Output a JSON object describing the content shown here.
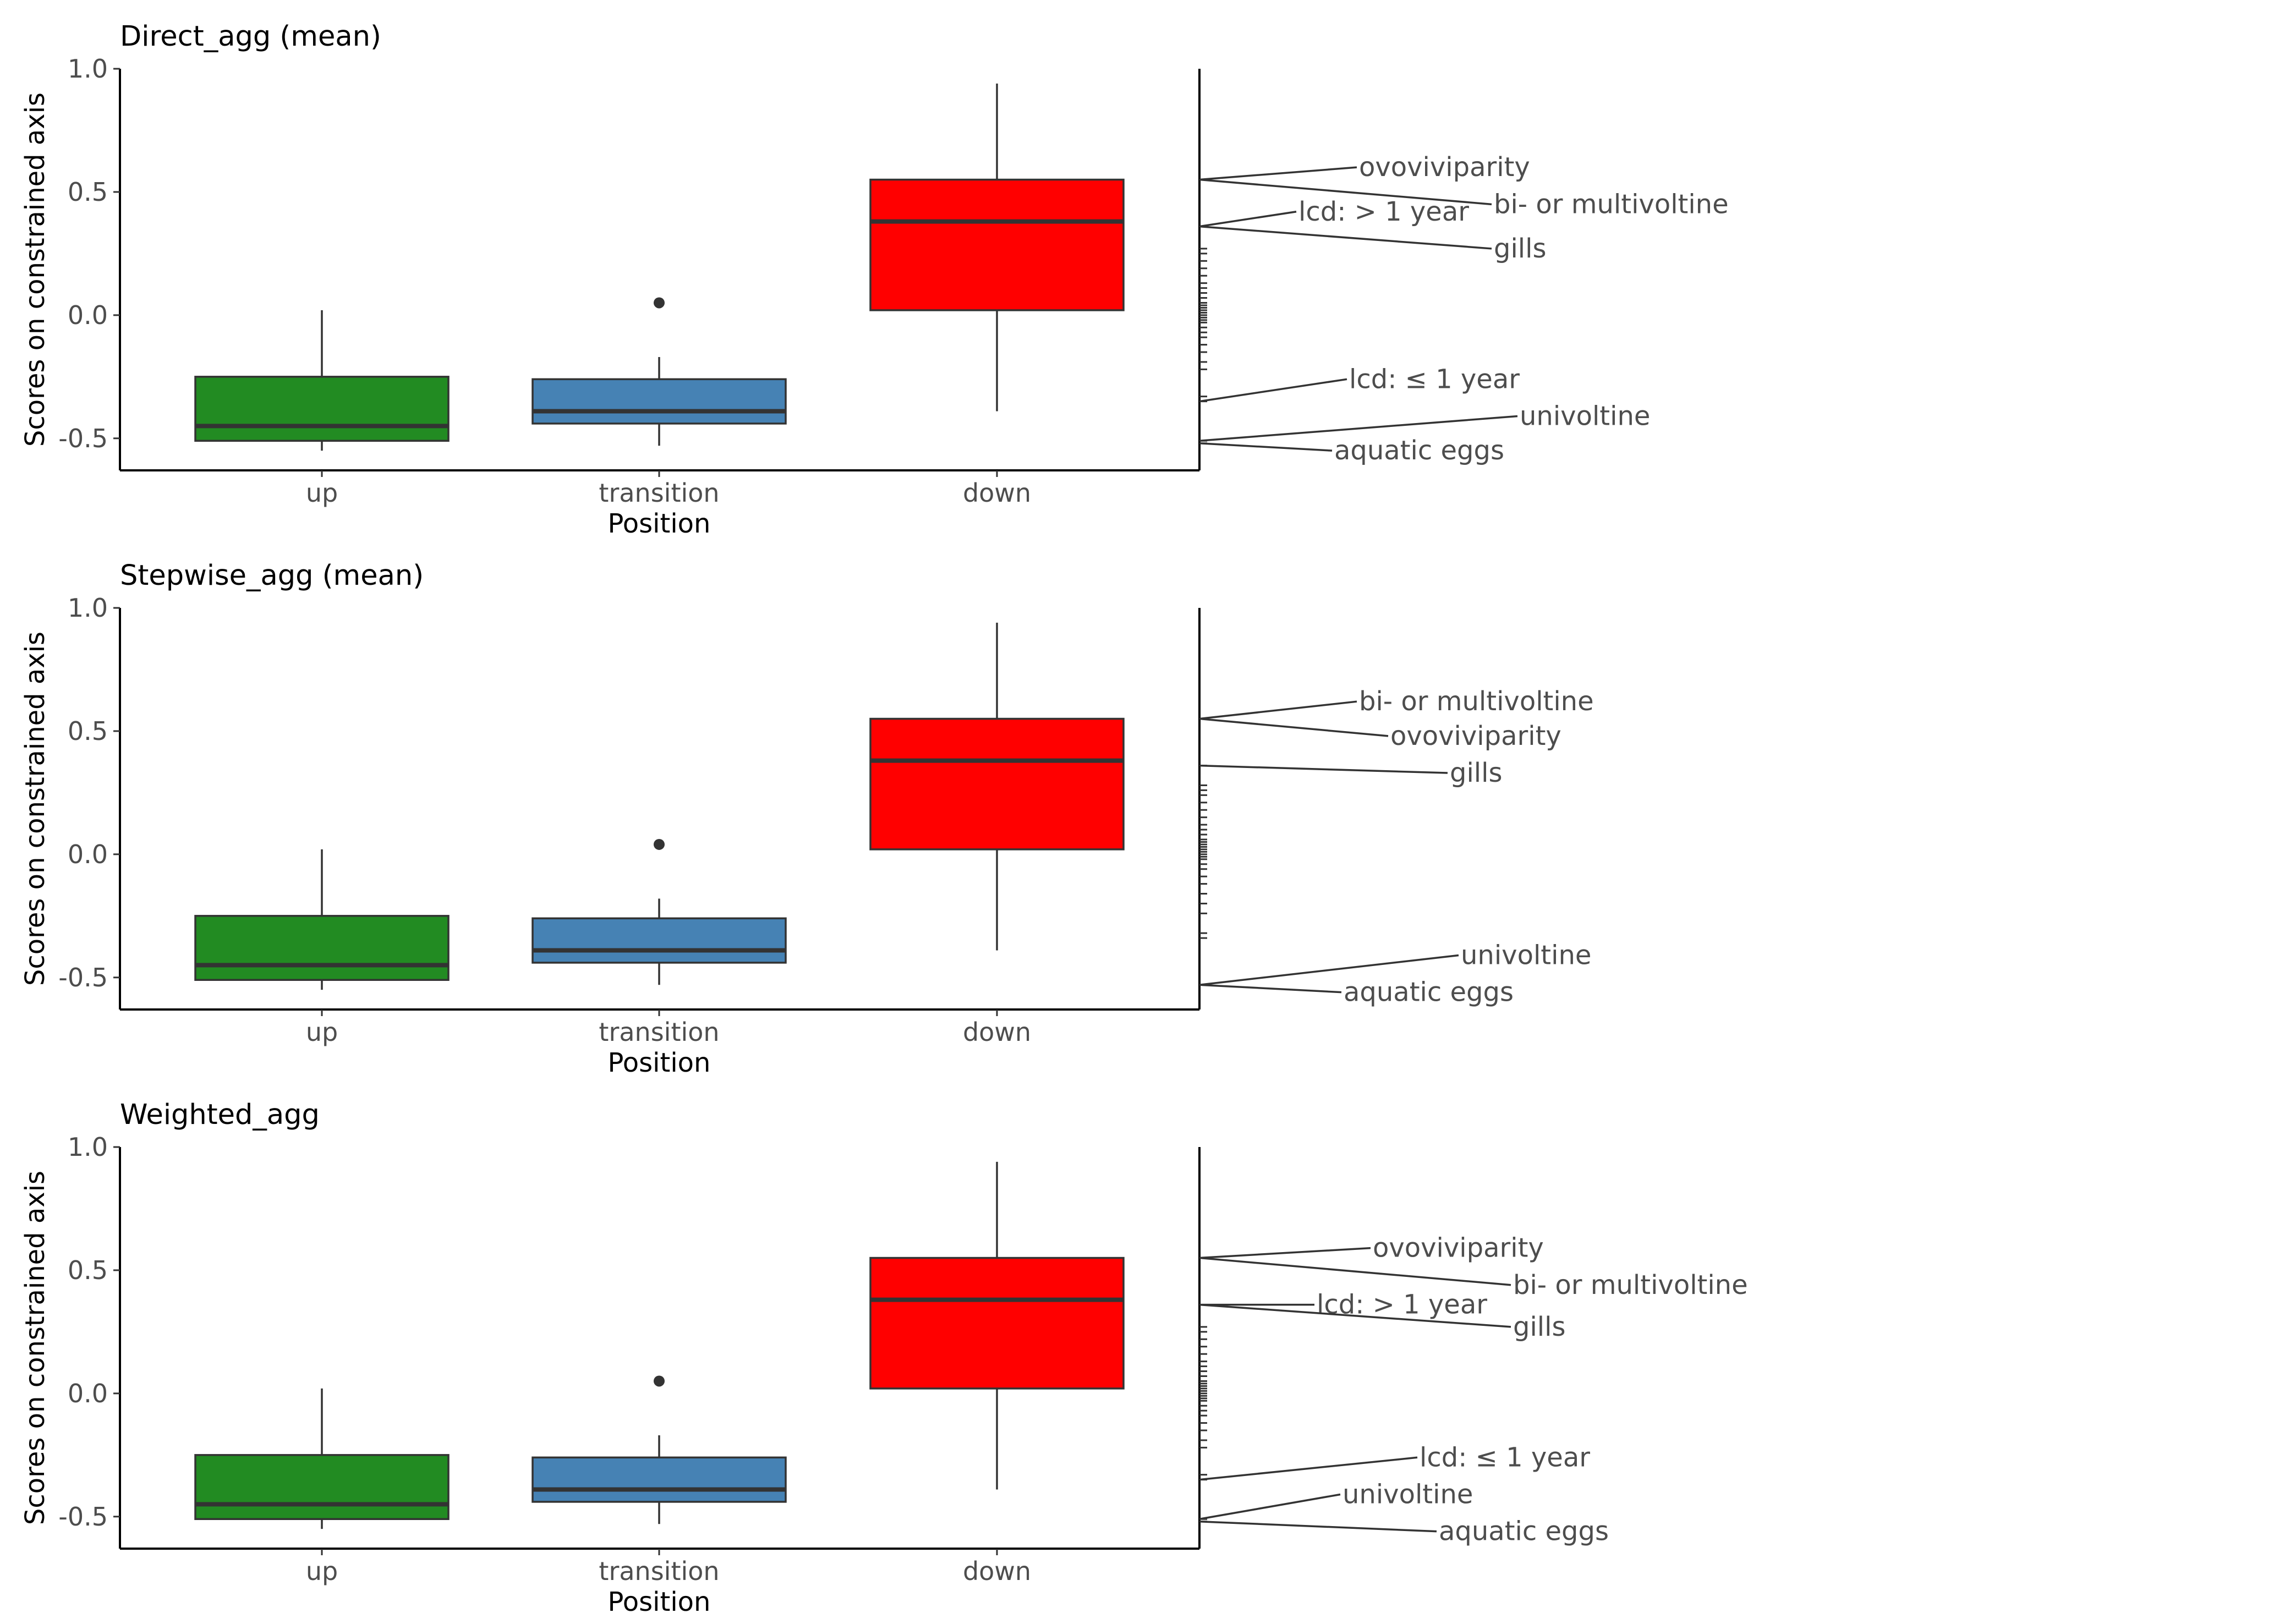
{
  "chart_data": [
    {
      "type": "box",
      "title": "Direct_agg (mean)",
      "xlabel": "Position",
      "ylabel": "Scores on constrained axis",
      "ylim": [
        -0.63,
        1.0
      ],
      "yticks": [
        1.0,
        0.5,
        0.0,
        -0.5
      ],
      "ytick_labels": [
        "1.0",
        "0.5",
        "0.0",
        "-0.5"
      ],
      "categories": [
        "up",
        "transition",
        "down"
      ],
      "boxes": [
        {
          "category": "up",
          "color": "#228B22",
          "q1": -0.51,
          "median": -0.45,
          "q3": -0.25,
          "whisker_low": -0.55,
          "whisker_high": 0.02,
          "outliers": []
        },
        {
          "category": "transition",
          "color": "#4682B4",
          "q1": -0.44,
          "median": -0.39,
          "q3": -0.26,
          "whisker_low": -0.53,
          "whisker_high": -0.17,
          "outliers": [
            0.05
          ]
        },
        {
          "category": "down",
          "color": "#FF0000",
          "q1": 0.02,
          "median": 0.38,
          "q3": 0.55,
          "whisker_low": -0.39,
          "whisker_high": 0.94,
          "outliers": []
        }
      ],
      "trait_scores": [
        0.55,
        0.55,
        0.36,
        0.36,
        -0.35,
        -0.51,
        -0.52,
        0.27,
        0.25,
        0.22,
        0.19,
        0.16,
        0.13,
        0.11,
        0.09,
        0.07,
        0.05,
        0.04,
        0.03,
        0.02,
        0.01,
        0.0,
        -0.01,
        -0.02,
        -0.03,
        -0.05,
        -0.07,
        -0.09,
        -0.12,
        -0.15,
        -0.19,
        -0.22,
        -0.33
      ],
      "labels": [
        {
          "text": "ovoviviparity",
          "score": 0.55,
          "label_y": 0.6
        },
        {
          "text": "bi- or multivoltine",
          "score": 0.55,
          "label_y": 0.45
        },
        {
          "text": "lcd:  > 1 year",
          "score": 0.36,
          "label_y": 0.42
        },
        {
          "text": "gills",
          "score": 0.36,
          "label_y": 0.27
        },
        {
          "text": "lcd:  ≤ 1 year",
          "score": -0.35,
          "label_y": -0.26
        },
        {
          "text": "univoltine",
          "score": -0.51,
          "label_y": -0.41
        },
        {
          "text": "aquatic eggs",
          "score": -0.52,
          "label_y": -0.55
        }
      ]
    },
    {
      "type": "box",
      "title": "Stepwise_agg (mean)",
      "xlabel": "Position",
      "ylabel": "Scores on constrained axis",
      "ylim": [
        -0.63,
        1.0
      ],
      "yticks": [
        1.0,
        0.5,
        0.0,
        -0.5
      ],
      "ytick_labels": [
        "1.0",
        "0.5",
        "0.0",
        "-0.5"
      ],
      "categories": [
        "up",
        "transition",
        "down"
      ],
      "boxes": [
        {
          "category": "up",
          "color": "#228B22",
          "q1": -0.51,
          "median": -0.45,
          "q3": -0.25,
          "whisker_low": -0.55,
          "whisker_high": 0.02,
          "outliers": []
        },
        {
          "category": "transition",
          "color": "#4682B4",
          "q1": -0.44,
          "median": -0.39,
          "q3": -0.26,
          "whisker_low": -0.53,
          "whisker_high": -0.18,
          "outliers": [
            0.04
          ]
        },
        {
          "category": "down",
          "color": "#FF0000",
          "q1": 0.02,
          "median": 0.38,
          "q3": 0.55,
          "whisker_low": -0.39,
          "whisker_high": 0.94,
          "outliers": []
        }
      ],
      "trait_scores": [
        0.55,
        0.55,
        0.36,
        -0.53,
        -0.53,
        0.28,
        0.26,
        0.24,
        0.21,
        0.18,
        0.15,
        0.12,
        0.1,
        0.08,
        0.06,
        0.05,
        0.04,
        0.03,
        0.02,
        0.01,
        0.0,
        -0.01,
        -0.02,
        -0.04,
        -0.06,
        -0.09,
        -0.12,
        -0.16,
        -0.2,
        -0.24,
        -0.32,
        -0.34
      ],
      "labels": [
        {
          "text": "bi- or multivoltine",
          "score": 0.55,
          "label_y": 0.62
        },
        {
          "text": "ovoviviparity",
          "score": 0.55,
          "label_y": 0.48
        },
        {
          "text": "gills",
          "score": 0.36,
          "label_y": 0.33
        },
        {
          "text": "univoltine",
          "score": -0.53,
          "label_y": -0.41
        },
        {
          "text": "aquatic eggs",
          "score": -0.53,
          "label_y": -0.56
        }
      ]
    },
    {
      "type": "box",
      "title": "Weighted_agg",
      "xlabel": "Position",
      "ylabel": "Scores on constrained axis",
      "ylim": [
        -0.63,
        1.0
      ],
      "yticks": [
        1.0,
        0.5,
        0.0,
        -0.5
      ],
      "ytick_labels": [
        "1.0",
        "0.5",
        "0.0",
        "-0.5"
      ],
      "categories": [
        "up",
        "transition",
        "down"
      ],
      "boxes": [
        {
          "category": "up",
          "color": "#228B22",
          "q1": -0.51,
          "median": -0.45,
          "q3": -0.25,
          "whisker_low": -0.55,
          "whisker_high": 0.02,
          "outliers": []
        },
        {
          "category": "transition",
          "color": "#4682B4",
          "q1": -0.44,
          "median": -0.39,
          "q3": -0.26,
          "whisker_low": -0.53,
          "whisker_high": -0.17,
          "outliers": [
            0.05
          ]
        },
        {
          "category": "down",
          "color": "#FF0000",
          "q1": 0.02,
          "median": 0.38,
          "q3": 0.55,
          "whisker_low": -0.39,
          "whisker_high": 0.94,
          "outliers": []
        }
      ],
      "trait_scores": [
        0.55,
        0.55,
        0.36,
        0.36,
        -0.35,
        -0.51,
        -0.52,
        0.27,
        0.25,
        0.22,
        0.19,
        0.16,
        0.13,
        0.11,
        0.09,
        0.07,
        0.05,
        0.04,
        0.03,
        0.02,
        0.01,
        0.0,
        -0.01,
        -0.02,
        -0.03,
        -0.05,
        -0.07,
        -0.09,
        -0.12,
        -0.15,
        -0.19,
        -0.22,
        -0.33
      ],
      "labels": [
        {
          "text": "ovoviviparity",
          "score": 0.55,
          "label_y": 0.59
        },
        {
          "text": "bi- or multivoltine",
          "score": 0.55,
          "label_y": 0.44
        },
        {
          "text": "lcd:  > 1 year",
          "score": 0.36,
          "label_y": 0.36
        },
        {
          "text": "gills",
          "score": 0.36,
          "label_y": 0.27
        },
        {
          "text": "lcd:  ≤ 1 year",
          "score": -0.35,
          "label_y": -0.26
        },
        {
          "text": "univoltine",
          "score": -0.51,
          "label_y": -0.41
        },
        {
          "text": "aquatic eggs",
          "score": -0.52,
          "label_y": -0.56
        }
      ]
    }
  ]
}
